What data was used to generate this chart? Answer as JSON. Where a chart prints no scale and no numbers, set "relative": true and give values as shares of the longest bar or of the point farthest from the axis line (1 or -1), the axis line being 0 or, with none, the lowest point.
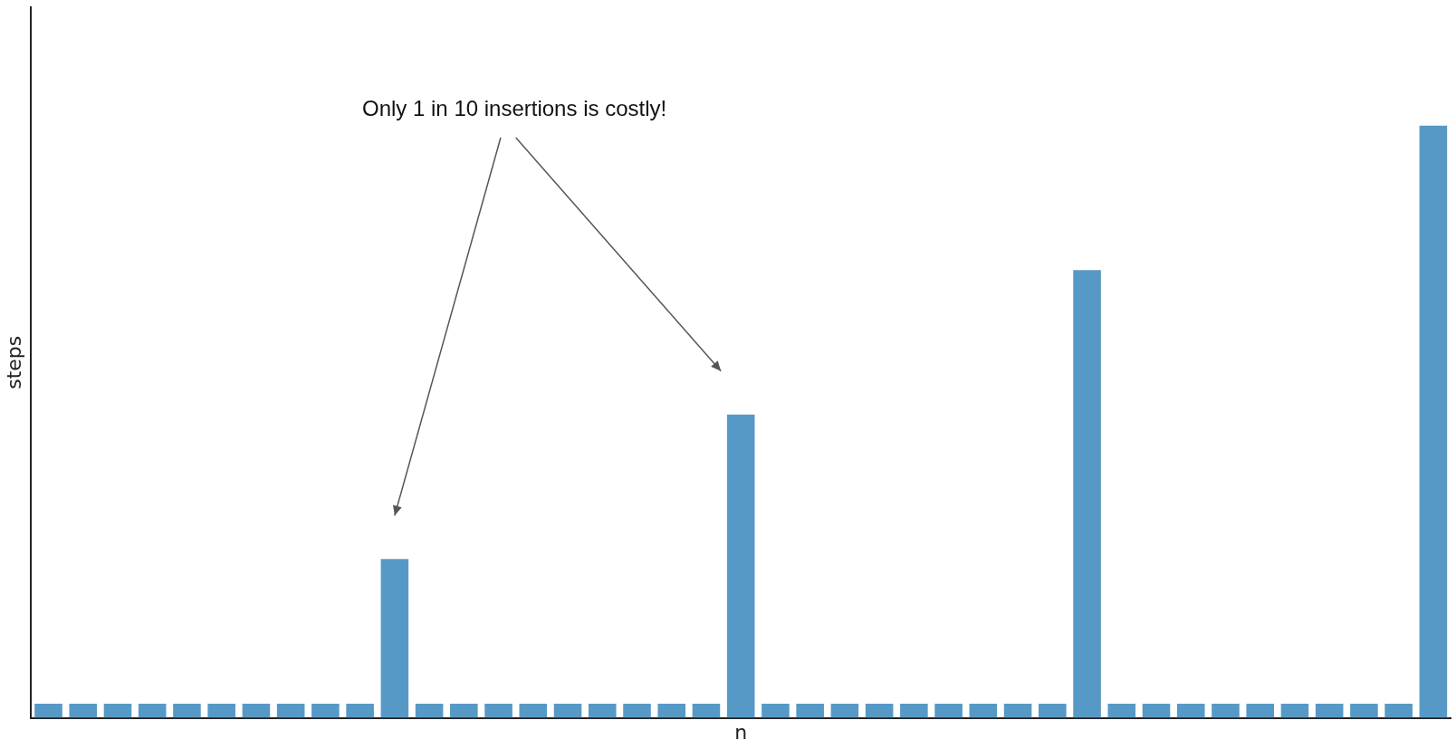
{
  "chart_data": {
    "type": "bar",
    "relative": true,
    "xlabel": "n",
    "ylabel": "steps",
    "color": "#5799c6",
    "grid": false,
    "legend": false,
    "tick_labels": false,
    "categories": [
      null,
      null,
      null,
      null,
      null,
      null,
      null,
      null,
      null,
      null,
      null,
      null,
      null,
      null,
      null,
      null,
      null,
      null,
      null,
      null,
      null,
      null,
      null,
      null,
      null,
      null,
      null,
      null,
      null,
      null,
      null,
      null,
      null,
      null,
      null,
      null,
      null,
      null,
      null,
      null,
      null
    ],
    "values": [
      0.024,
      0.024,
      0.024,
      0.024,
      0.024,
      0.024,
      0.024,
      0.024,
      0.024,
      0.024,
      0.268,
      0.024,
      0.024,
      0.024,
      0.024,
      0.024,
      0.024,
      0.024,
      0.024,
      0.024,
      0.512,
      0.024,
      0.024,
      0.024,
      0.024,
      0.024,
      0.024,
      0.024,
      0.024,
      0.024,
      0.756,
      0.024,
      0.024,
      0.024,
      0.024,
      0.024,
      0.024,
      0.024,
      0.024,
      0.024,
      1
    ],
    "annotations": [
      "Only 1 in 10 insertions is costly!"
    ]
  }
}
